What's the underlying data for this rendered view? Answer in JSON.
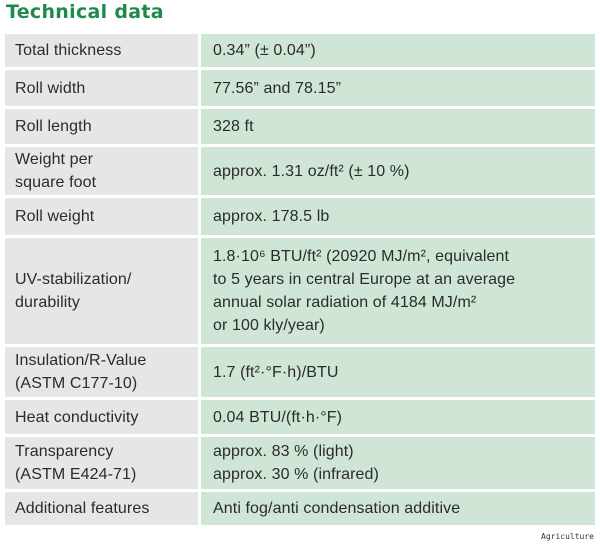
{
  "title": "Technical data",
  "rows": [
    {
      "label": "Total thickness",
      "value": "0.34” (± 0.04”)"
    },
    {
      "label": "Roll width",
      "value": "77.56” and 78.15”"
    },
    {
      "label": "Roll length",
      "value": "328 ft"
    },
    {
      "label": "Weight per\nsquare foot",
      "value": "approx. 1.31 oz/ft² (± 10 %)"
    },
    {
      "label": "Roll weight",
      "value": "approx. 178.5 lb"
    },
    {
      "label": "UV-stabilization/\ndurability",
      "value": "1.8·10⁶ BTU/ft² (20920 MJ/m², equivalent\nto 5 years in central Europe at an average\nannual solar radiation of 4184 MJ/m²\nor 100 kly/year)"
    },
    {
      "label": "Insulation/R-Value\n(ASTM C177-10)",
      "value": "1.7 (ft²·°F·h)/BTU"
    },
    {
      "label": "Heat conductivity",
      "value": "0.04 BTU/(ft·h·°F)"
    },
    {
      "label": "Transparency\n(ASTM E424-71)",
      "value": "approx. 83 % (light)\napprox. 30 % (infrared)"
    },
    {
      "label": "Additional features",
      "value": "Anti fog/anti condensation additive"
    }
  ],
  "footer": "Agriculture"
}
